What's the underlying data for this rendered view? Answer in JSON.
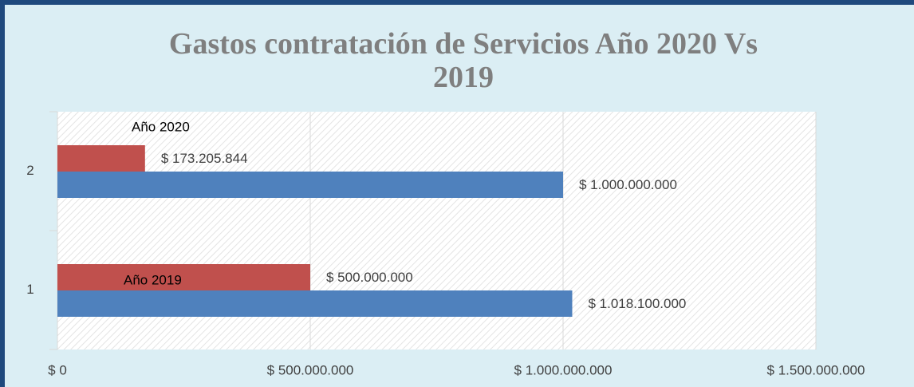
{
  "chart_data": {
    "type": "bar",
    "orientation": "horizontal",
    "title": "Gastos contratación de Servicios Año 2020 Vs 2019",
    "categories": [
      "1",
      "2"
    ],
    "series": [
      {
        "color": "#4f81bd",
        "values": [
          1018100000,
          1000000000
        ],
        "value_labels": [
          "$ 1.018.100.000",
          "$ 1.000.000.000"
        ]
      },
      {
        "color": "#c0504d",
        "values": [
          500000000,
          173205844
        ],
        "value_labels": [
          "$ 500.000.000",
          "$ 173.205.844"
        ]
      }
    ],
    "annotations": [
      "Año 2020",
      "Año 2019"
    ],
    "xlim": [
      0,
      1500000000
    ],
    "xticks": [
      {
        "value": 0,
        "label": "$ 0"
      },
      {
        "value": 500000000,
        "label": "$ 500.000.000"
      },
      {
        "value": 1000000000,
        "label": "$ 1.000.000.000"
      },
      {
        "value": 1500000000,
        "label": "$ 1.500.000.000"
      }
    ],
    "grid": true
  }
}
